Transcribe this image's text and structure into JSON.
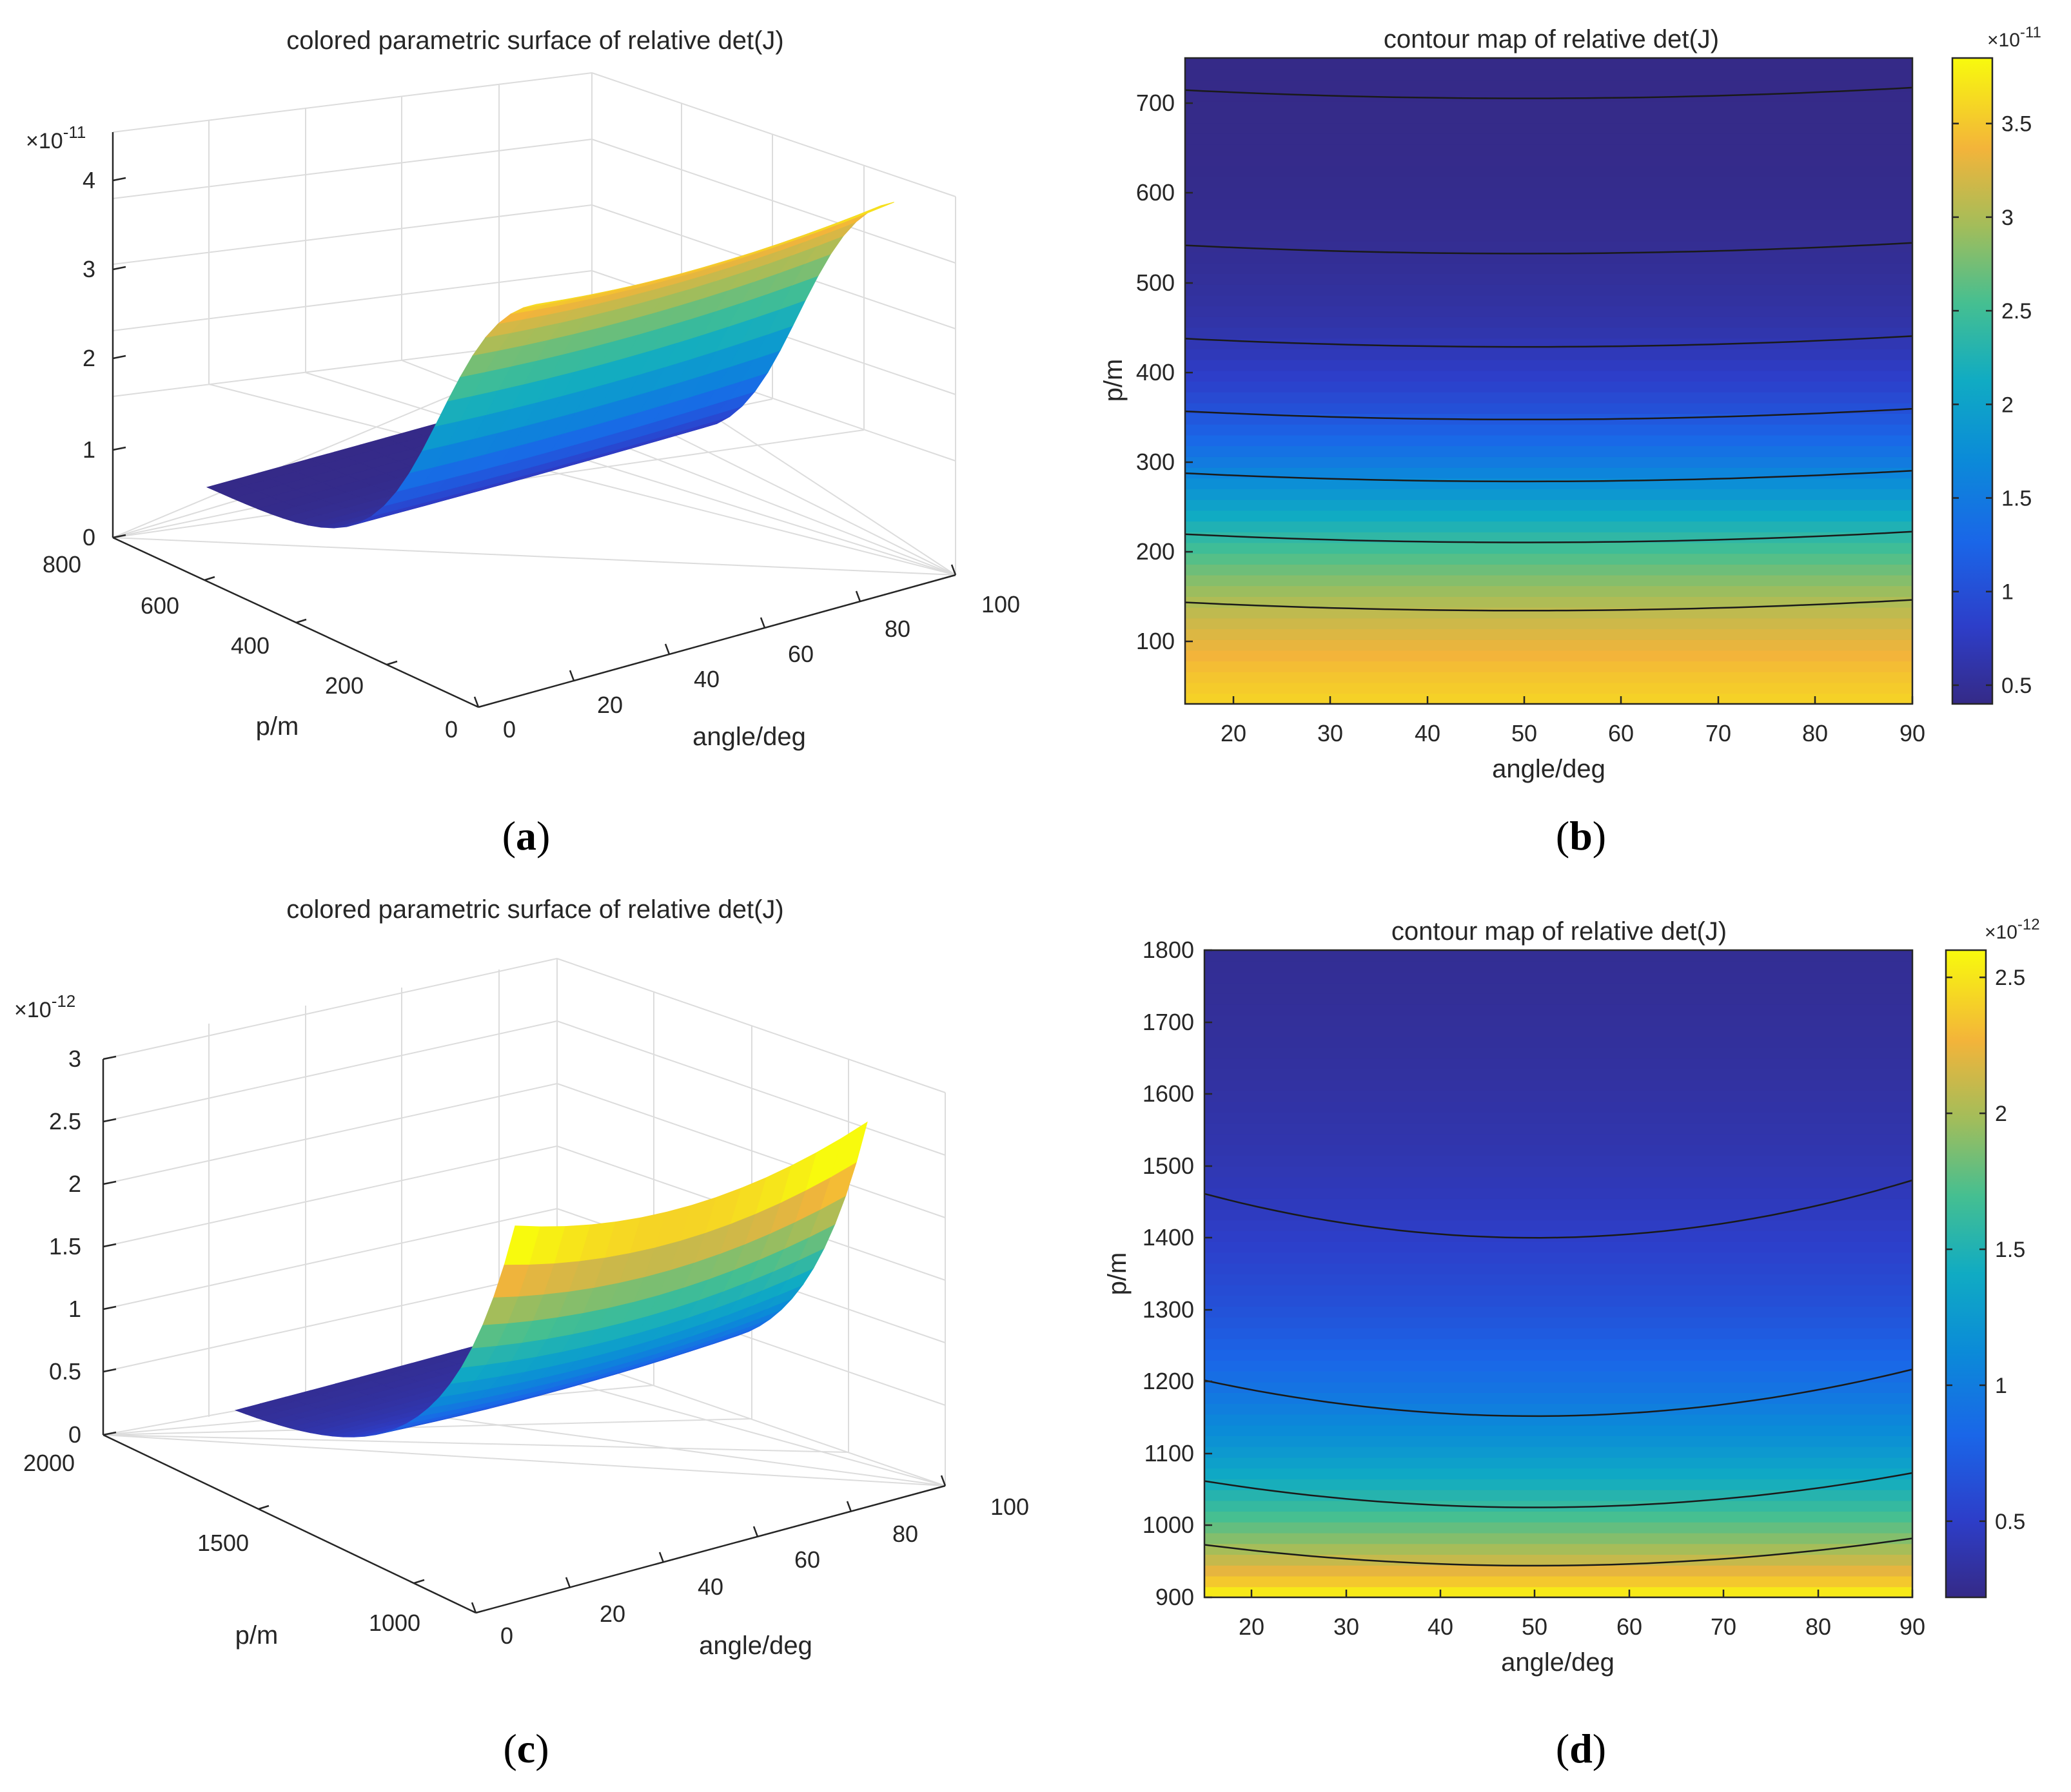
{
  "chart_data": [
    {
      "id": "a",
      "type": "surface3d",
      "title": "colored parametric surface of relative det(J)",
      "caption": {
        "open": "(",
        "letter": "a",
        "close": ")"
      },
      "exponent": {
        "base": "×10",
        "power": "-11"
      },
      "xlabel": "angle/deg",
      "ylabel": "p/m",
      "xlim": [
        0,
        100
      ],
      "xticks": [
        0,
        20,
        40,
        60,
        80,
        100
      ],
      "ylim": [
        0,
        800
      ],
      "yticks": [
        0,
        200,
        400,
        600,
        800
      ],
      "zlim": [
        0,
        4
      ],
      "zticks": [
        0,
        1,
        2,
        3,
        4
      ],
      "surface": {
        "angle_range": [
          15,
          90
        ],
        "p_range": [
          30,
          750
        ],
        "form": "logistic",
        "z_low": 0.4,
        "z_high": 3.85,
        "p_mid": 240,
        "p_scale": 80,
        "angle_bow": 0.04
      },
      "color_range": [
        0.4,
        3.85
      ]
    },
    {
      "id": "b",
      "type": "contour",
      "title": "contour map of relative det(J)",
      "caption": {
        "open": "(",
        "letter": "b",
        "close": ")"
      },
      "exponent": {
        "base": "×10",
        "power": "-11"
      },
      "xlabel": "angle/deg",
      "ylabel": "p/m",
      "xlim": [
        15,
        90
      ],
      "xticks": [
        20,
        30,
        40,
        50,
        60,
        70,
        80,
        90
      ],
      "ylim": [
        30,
        750
      ],
      "yticks": [
        100,
        200,
        300,
        400,
        500,
        600,
        700
      ],
      "colorbar": {
        "range": [
          0.4,
          3.85
        ],
        "ticks": [
          0.5,
          1,
          1.5,
          2,
          2.5,
          3,
          3.5
        ]
      },
      "contour_levels_p_at_50deg": [
        705,
        532,
        428,
        347,
        278,
        210,
        134
      ],
      "contour_bow_p": 12
    },
    {
      "id": "c",
      "type": "surface3d",
      "title": "colored parametric surface of relative det(J)",
      "caption": {
        "open": "(",
        "letter": "c",
        "close": ")"
      },
      "exponent": {
        "base": "×10",
        "power": "-12"
      },
      "xlabel": "angle/deg",
      "ylabel": "p/m",
      "xlim": [
        0,
        100
      ],
      "xticks": [
        0,
        20,
        40,
        60,
        80,
        100
      ],
      "ylim": [
        800,
        2000
      ],
      "yticks": [
        1000,
        1500,
        2000
      ],
      "zlim": [
        0,
        3
      ],
      "zticks": [
        0,
        0.5,
        1,
        1.5,
        2,
        2.5,
        3
      ],
      "surface": {
        "angle_range": [
          15,
          90
        ],
        "p_range": [
          900,
          1800
        ],
        "form": "exponential",
        "z_low": 0.22,
        "z_high": 2.6,
        "p_start": 900,
        "p_scale": 240,
        "angle_bow": 0.12
      },
      "color_range": [
        0.22,
        2.6
      ]
    },
    {
      "id": "d",
      "type": "contour",
      "title": "contour map of relative det(J)",
      "caption": {
        "open": "(",
        "letter": "d",
        "close": ")"
      },
      "exponent": {
        "base": "×10",
        "power": "-12"
      },
      "xlabel": "angle/deg",
      "ylabel": "p/m",
      "xlim": [
        15,
        90
      ],
      "xticks": [
        20,
        30,
        40,
        50,
        60,
        70,
        80,
        90
      ],
      "ylim": [
        900,
        1800
      ],
      "yticks": [
        900,
        1000,
        1100,
        1200,
        1300,
        1400,
        1500,
        1600,
        1700,
        1800
      ],
      "colorbar": {
        "range": [
          0.22,
          2.6
        ],
        "ticks": [
          0.5,
          1,
          1.5,
          2,
          2.5
        ]
      },
      "contour_levels_p_at_50deg": [
        1400,
        1152,
        1025,
        944
      ],
      "contour_bow_p": [
        80,
        65,
        48,
        38
      ]
    }
  ]
}
